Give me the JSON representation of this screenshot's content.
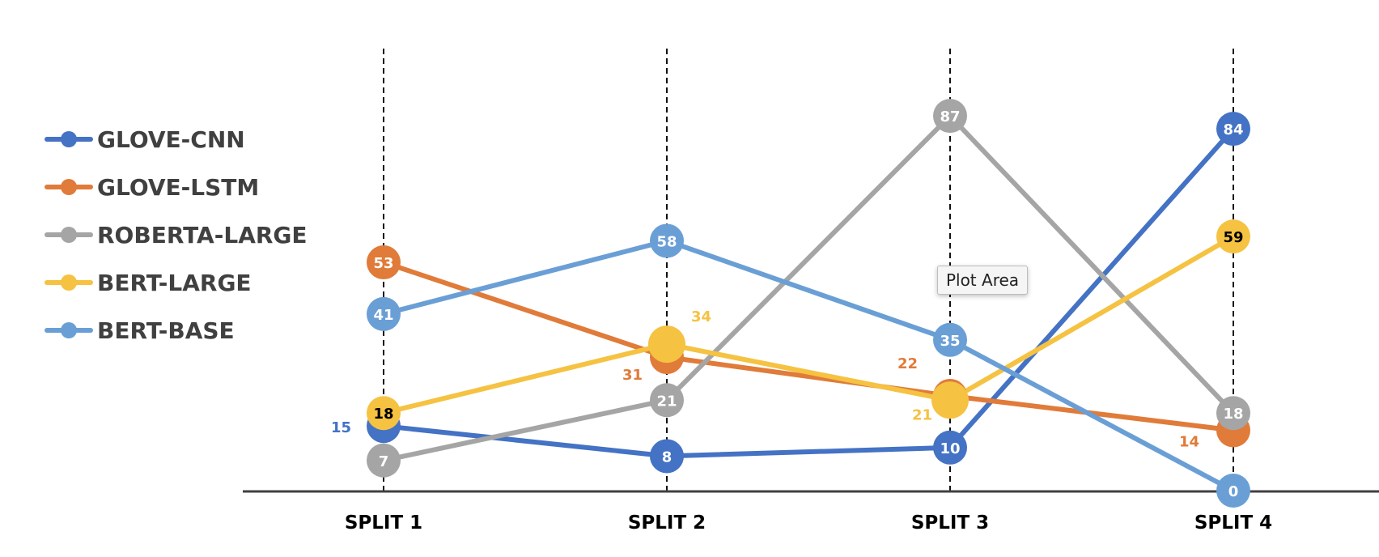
{
  "chart_data": {
    "type": "line",
    "categories": [
      "SPLIT 1",
      "SPLIT 2",
      "SPLIT 3",
      "SPLIT 4"
    ],
    "ylim": [
      0,
      90
    ],
    "grid": false,
    "legend_position": "left",
    "series": [
      {
        "name": "GLOVE-CNN",
        "color": "#4472C4",
        "values": [
          15,
          8,
          10,
          84
        ],
        "labels": [
          "15",
          "8",
          "10",
          "84"
        ]
      },
      {
        "name": "GLOVE-LSTM",
        "color": "#E07B39",
        "values": [
          53,
          31,
          22,
          14
        ],
        "labels": [
          "53",
          "31",
          "22",
          "14"
        ]
      },
      {
        "name": "ROBERTA-LARGE",
        "color": "#A5A5A5",
        "values": [
          7,
          21,
          87,
          18
        ],
        "labels": [
          "7",
          "21",
          "87",
          "18"
        ]
      },
      {
        "name": "BERT-LARGE",
        "color": "#F5C242",
        "values": [
          18,
          34,
          21,
          59
        ],
        "labels": [
          "18",
          "34",
          "21",
          "59"
        ]
      },
      {
        "name": "BERT-BASE",
        "color": "#6A9FD6",
        "values": [
          41,
          58,
          35,
          0
        ],
        "labels": [
          "41",
          "58",
          "35",
          "0"
        ]
      }
    ],
    "tooltip": "Plot Area"
  }
}
